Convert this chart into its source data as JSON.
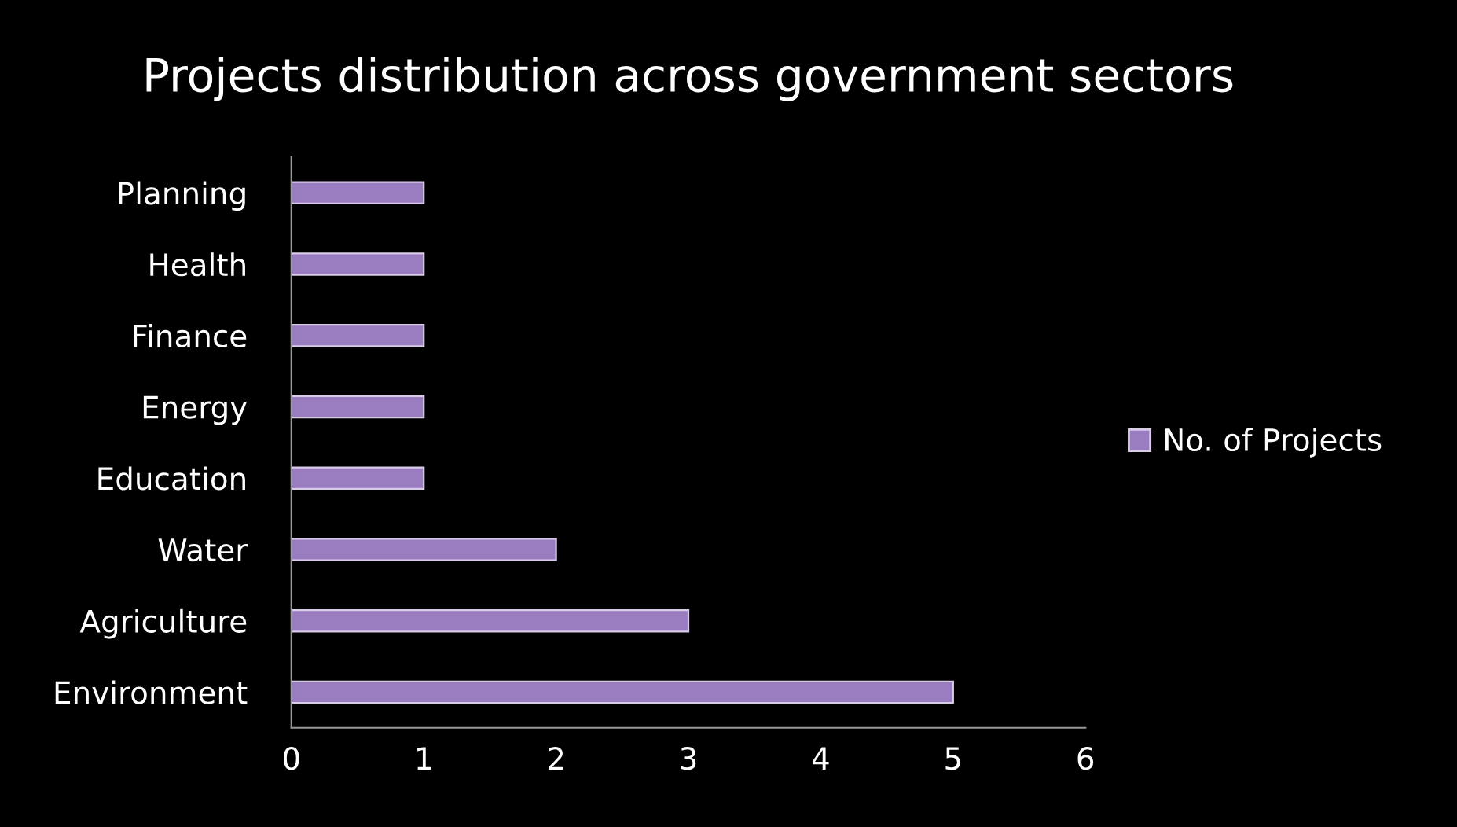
{
  "chart_data": {
    "type": "bar",
    "orientation": "horizontal",
    "title": "Projects distribution across government sectors",
    "categories": [
      "Planning",
      "Health",
      "Finance",
      "Energy",
      "Education",
      "Water",
      "Agriculture",
      "Environment"
    ],
    "series": [
      {
        "name": "No. of Projects",
        "color": "#9a7cc0",
        "values": [
          1,
          1,
          1,
          1,
          1,
          2,
          3,
          5
        ]
      }
    ],
    "xlim": [
      0,
      6
    ],
    "xticks": [
      0,
      1,
      2,
      3,
      4,
      5,
      6
    ],
    "grid": false,
    "legend": "right"
  }
}
